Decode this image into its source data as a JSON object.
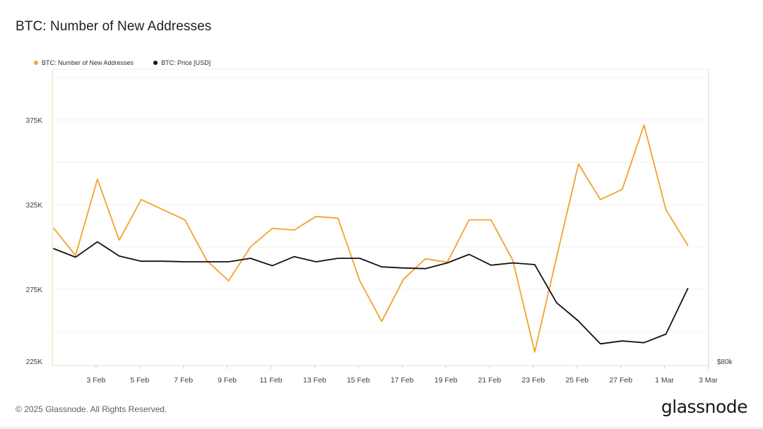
{
  "header": {
    "title": "BTC: Number of New Addresses"
  },
  "legend": [
    {
      "label": "BTC: Number of New Addresses",
      "color": "#f0a32c"
    },
    {
      "label": "BTC: Price [USD]",
      "color": "#111111"
    }
  ],
  "footer": {
    "copyright": "© 2025 Glassnode. All Rights Reserved.",
    "brand": "glassnode"
  },
  "chart_data": {
    "type": "line",
    "x": [
      "1 Feb",
      "2 Feb",
      "3 Feb",
      "4 Feb",
      "5 Feb",
      "6 Feb",
      "7 Feb",
      "8 Feb",
      "9 Feb",
      "10 Feb",
      "11 Feb",
      "12 Feb",
      "13 Feb",
      "14 Feb",
      "15 Feb",
      "16 Feb",
      "17 Feb",
      "18 Feb",
      "19 Feb",
      "20 Feb",
      "21 Feb",
      "22 Feb",
      "23 Feb",
      "24 Feb",
      "25 Feb",
      "26 Feb",
      "27 Feb",
      "28 Feb",
      "1 Mar",
      "2 Mar"
    ],
    "x_tick_labels": [
      "3 Feb",
      "5 Feb",
      "7 Feb",
      "9 Feb",
      "11 Feb",
      "13 Feb",
      "15 Feb",
      "17 Feb",
      "19 Feb",
      "21 Feb",
      "23 Feb",
      "25 Feb",
      "27 Feb",
      "1 Mar",
      "3 Mar"
    ],
    "x_range": [
      "1 Feb",
      "3 Mar"
    ],
    "y_left": {
      "ticks": [
        225000,
        275000,
        325000,
        375000
      ],
      "tick_labels": [
        "225K",
        "275K",
        "325K",
        "375K"
      ],
      "range": [
        225000,
        400000
      ]
    },
    "y_right": {
      "tick_labels": [
        "$80k"
      ]
    },
    "grid": true,
    "legend_position": "top-left",
    "series": [
      {
        "name": "BTC: Number of New Addresses",
        "axis": "left",
        "color": "#f0a32c",
        "values": [
          311000,
          295000,
          340000,
          304000,
          328000,
          322000,
          316000,
          292000,
          280000,
          300000,
          311000,
          310000,
          318000,
          317000,
          280000,
          256000,
          281000,
          293000,
          291000,
          316000,
          316000,
          292000,
          238000,
          294000,
          349000,
          328000,
          334000,
          372000,
          322000,
          301000
        ]
      },
      {
        "name": "BTC: Price [USD]",
        "axis": "right",
        "color": "#111111",
        "values": [
          101000,
          99500,
          102200,
          99700,
          98800,
          98800,
          98700,
          98700,
          98700,
          99300,
          98000,
          99600,
          98700,
          99300,
          99300,
          97800,
          97600,
          97500,
          98500,
          100000,
          98100,
          98500,
          98200,
          91500,
          88300,
          84300,
          84800,
          84500,
          86000,
          94000
        ]
      }
    ]
  }
}
